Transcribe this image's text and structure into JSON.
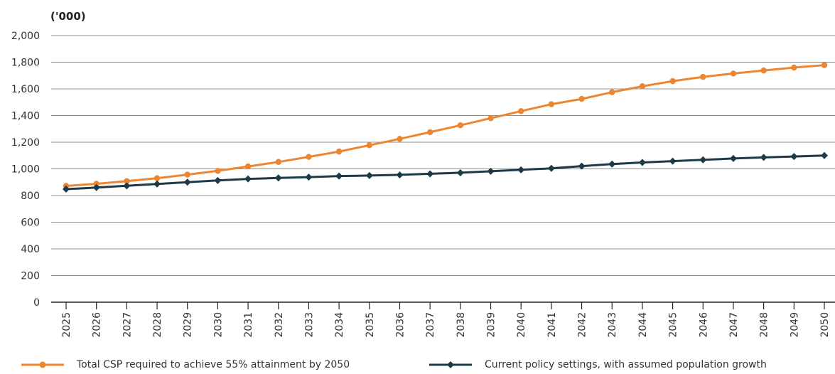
{
  "colors": {
    "total_csp": "#EC8632",
    "current_policy": "#1E3A48",
    "grid": "#909090",
    "axis": "#222222"
  },
  "chart_data": {
    "type": "line",
    "unit_label": "('000)",
    "x": [
      "2025",
      "2026",
      "2027",
      "2028",
      "2029",
      "2030",
      "2031",
      "2032",
      "2033",
      "2034",
      "2035",
      "2036",
      "2037",
      "2038",
      "2039",
      "2040",
      "2041",
      "2042",
      "2043",
      "2044",
      "2045",
      "2046",
      "2047",
      "2048",
      "2049",
      "2050"
    ],
    "ylim": [
      0,
      2000
    ],
    "yticks": [
      "0",
      "200",
      "400",
      "600",
      "800",
      "1,000",
      "1,200",
      "1,400",
      "1,600",
      "1,800",
      "2,000"
    ],
    "ytick_values": [
      0,
      200,
      400,
      600,
      800,
      1000,
      1200,
      1400,
      1600,
      1800,
      2000
    ],
    "grid": true,
    "legend_position": "bottom",
    "series": [
      {
        "name": "Total CSP required to achieve 55% attainment by 2050",
        "marker": "circle",
        "values": [
          872,
          888,
          908,
          930,
          957,
          985,
          1018,
          1052,
          1090,
          1130,
          1177,
          1225,
          1275,
          1327,
          1380,
          1433,
          1485,
          1525,
          1575,
          1620,
          1658,
          1690,
          1715,
          1738,
          1760,
          1778
        ]
      },
      {
        "name": "Current policy settings, with assumed population growth",
        "marker": "diamond",
        "values": [
          848,
          860,
          873,
          887,
          900,
          913,
          925,
          932,
          938,
          946,
          950,
          955,
          963,
          971,
          982,
          993,
          1004,
          1021,
          1036,
          1048,
          1058,
          1068,
          1078,
          1086,
          1093,
          1100
        ]
      }
    ]
  }
}
